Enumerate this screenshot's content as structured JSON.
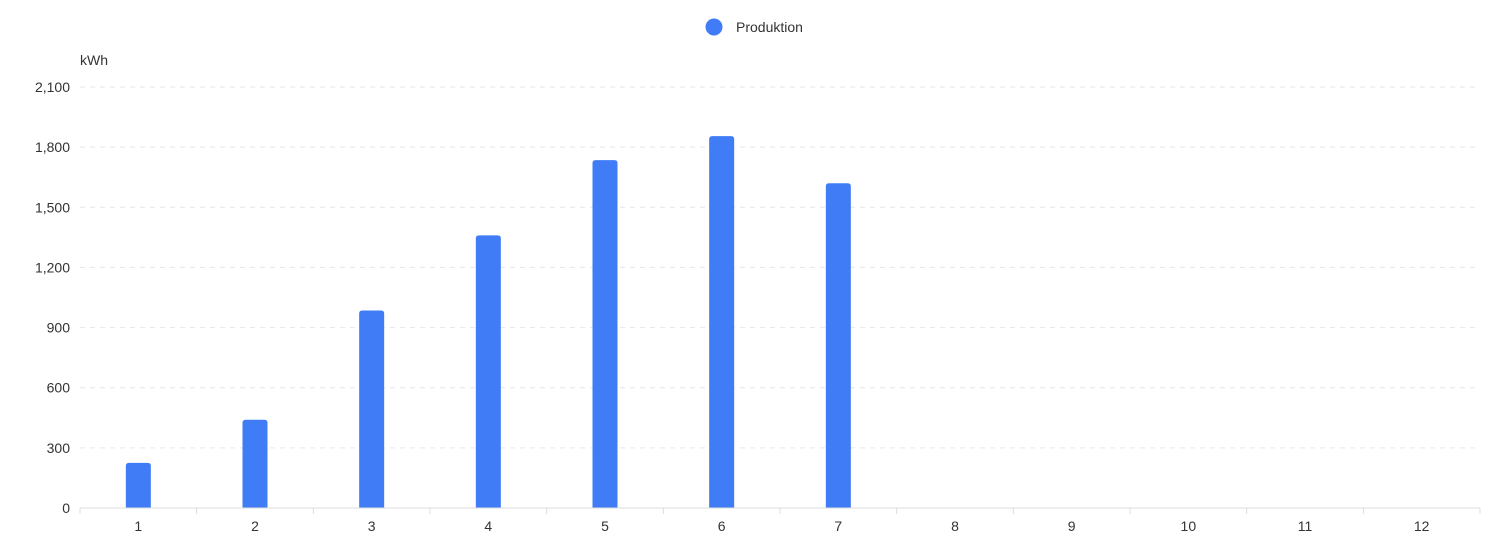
{
  "chart_data": {
    "type": "bar",
    "title": "",
    "xlabel": "",
    "ylabel": "kWh",
    "categories": [
      "1",
      "2",
      "3",
      "4",
      "5",
      "6",
      "7",
      "8",
      "9",
      "10",
      "11",
      "12"
    ],
    "series": [
      {
        "name": "Produktion",
        "color": "#3f7cf6",
        "values": [
          225,
          440,
          985,
          1360,
          1735,
          1855,
          1620,
          null,
          null,
          null,
          null,
          null
        ]
      }
    ],
    "ylim": [
      0,
      2100
    ],
    "yticks": [
      0,
      300,
      600,
      900,
      1200,
      1500,
      1800,
      2100
    ],
    "ytick_labels": [
      "0",
      "300",
      "600",
      "900",
      "1,200",
      "1,500",
      "1,800",
      "2,100"
    ],
    "grid": true,
    "legend_position": "top-center"
  }
}
